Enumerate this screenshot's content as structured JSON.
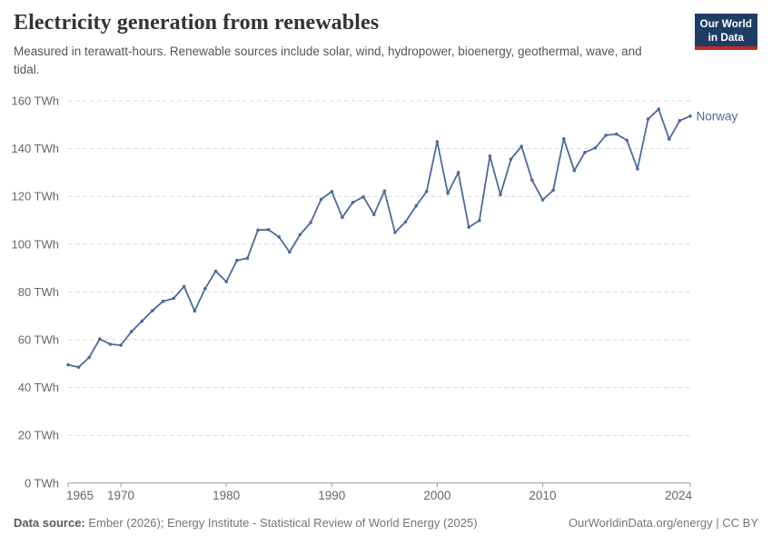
{
  "header": {
    "title": "Electricity generation from renewables",
    "subtitle": "Measured in terawatt-hours. Renewable sources include solar, wind, hydropower, bioenergy, geothermal, wave, and tidal.",
    "logo": {
      "line1": "Our World",
      "line2": "in Data"
    }
  },
  "footer": {
    "source_label": "Data source:",
    "source_text": " Ember (2026); Energy Institute - Statistical Review of World Energy (2025)",
    "credit": "OurWorldinData.org/energy | CC BY"
  },
  "chart_data": {
    "type": "line",
    "title": "Electricity generation from renewables",
    "xlabel": "",
    "ylabel": "TWh",
    "unit_suffix": " TWh",
    "grid": "horizontal-dashed",
    "legend_position": "end-of-line",
    "ylim": [
      0,
      160
    ],
    "ytick_step": 20,
    "xticks": [
      1965,
      1970,
      1980,
      1990,
      2000,
      2010,
      2024
    ],
    "x": [
      1965,
      1966,
      1967,
      1968,
      1969,
      1970,
      1971,
      1972,
      1973,
      1974,
      1975,
      1976,
      1977,
      1978,
      1979,
      1980,
      1981,
      1982,
      1983,
      1984,
      1985,
      1986,
      1987,
      1988,
      1989,
      1990,
      1991,
      1992,
      1993,
      1994,
      1995,
      1996,
      1997,
      1998,
      1999,
      2000,
      2001,
      2002,
      2003,
      2004,
      2005,
      2006,
      2007,
      2008,
      2009,
      2010,
      2011,
      2012,
      2013,
      2014,
      2015,
      2016,
      2017,
      2018,
      2019,
      2020,
      2021,
      2022,
      2023,
      2024
    ],
    "series": [
      {
        "name": "Norway",
        "color": "#4c6a9c",
        "values": [
          49.5,
          48.5,
          52.6,
          60.3,
          58.1,
          57.7,
          63.4,
          67.8,
          72.2,
          76.1,
          77.3,
          82.3,
          72.0,
          81.4,
          88.7,
          84.3,
          93.2,
          94.1,
          105.9,
          106.1,
          103.0,
          96.7,
          104.0,
          109.0,
          118.8,
          122.0,
          111.2,
          117.5,
          119.8,
          112.4,
          122.3,
          104.9,
          109.3,
          116.0,
          122.0,
          142.9,
          121.3,
          130.0,
          107.1,
          109.9,
          136.9,
          120.7,
          135.6,
          141.0,
          126.8,
          118.5,
          122.6,
          144.1,
          130.8,
          138.4,
          140.3,
          145.6,
          146.1,
          143.5,
          131.5,
          152.4,
          156.5,
          143.9,
          151.7,
          153.6
        ]
      }
    ]
  },
  "colors": {
    "line": "#4c6a9c",
    "grid": "#d9d9d9",
    "axis": "#999999",
    "tick_label": "#666666",
    "logo_bg": "#1d3d63",
    "logo_accent": "#bc2d23"
  }
}
